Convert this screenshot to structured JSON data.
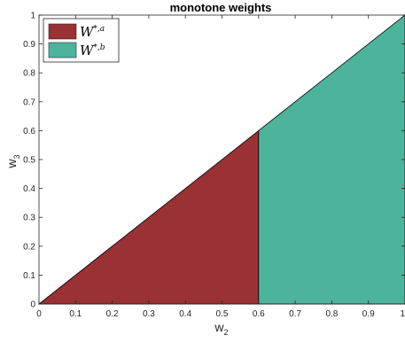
{
  "chart_data": {
    "type": "area",
    "title": "monotone weights",
    "xlabel": {
      "base": "w",
      "sub": "2"
    },
    "ylabel": {
      "base": "w",
      "sub": "3"
    },
    "xlim": [
      0,
      1
    ],
    "ylim": [
      0,
      1
    ],
    "x_ticks": [
      "0",
      "0.1",
      "0.2",
      "0.3",
      "0.4",
      "0.5",
      "0.6",
      "0.7",
      "0.8",
      "0.9",
      "1"
    ],
    "y_ticks": [
      "0",
      "0.1",
      "0.2",
      "0.3",
      "0.4",
      "0.5",
      "0.6",
      "0.7",
      "0.8",
      "0.9",
      "1"
    ],
    "grid": false,
    "legend_position": "top-left",
    "regions": [
      {
        "name": "W*,a",
        "legend_base": "W",
        "legend_sup": "*,a",
        "color": "#9a3134",
        "polygon": [
          [
            0,
            0
          ],
          [
            0.6,
            0
          ],
          [
            0.6,
            0.6
          ]
        ]
      },
      {
        "name": "W*,b",
        "legend_base": "W",
        "legend_sup": "*,b",
        "color": "#4db49c",
        "polygon": [
          [
            0.6,
            0
          ],
          [
            1,
            0
          ],
          [
            1,
            1
          ],
          [
            0.6,
            0.6
          ]
        ]
      }
    ]
  }
}
